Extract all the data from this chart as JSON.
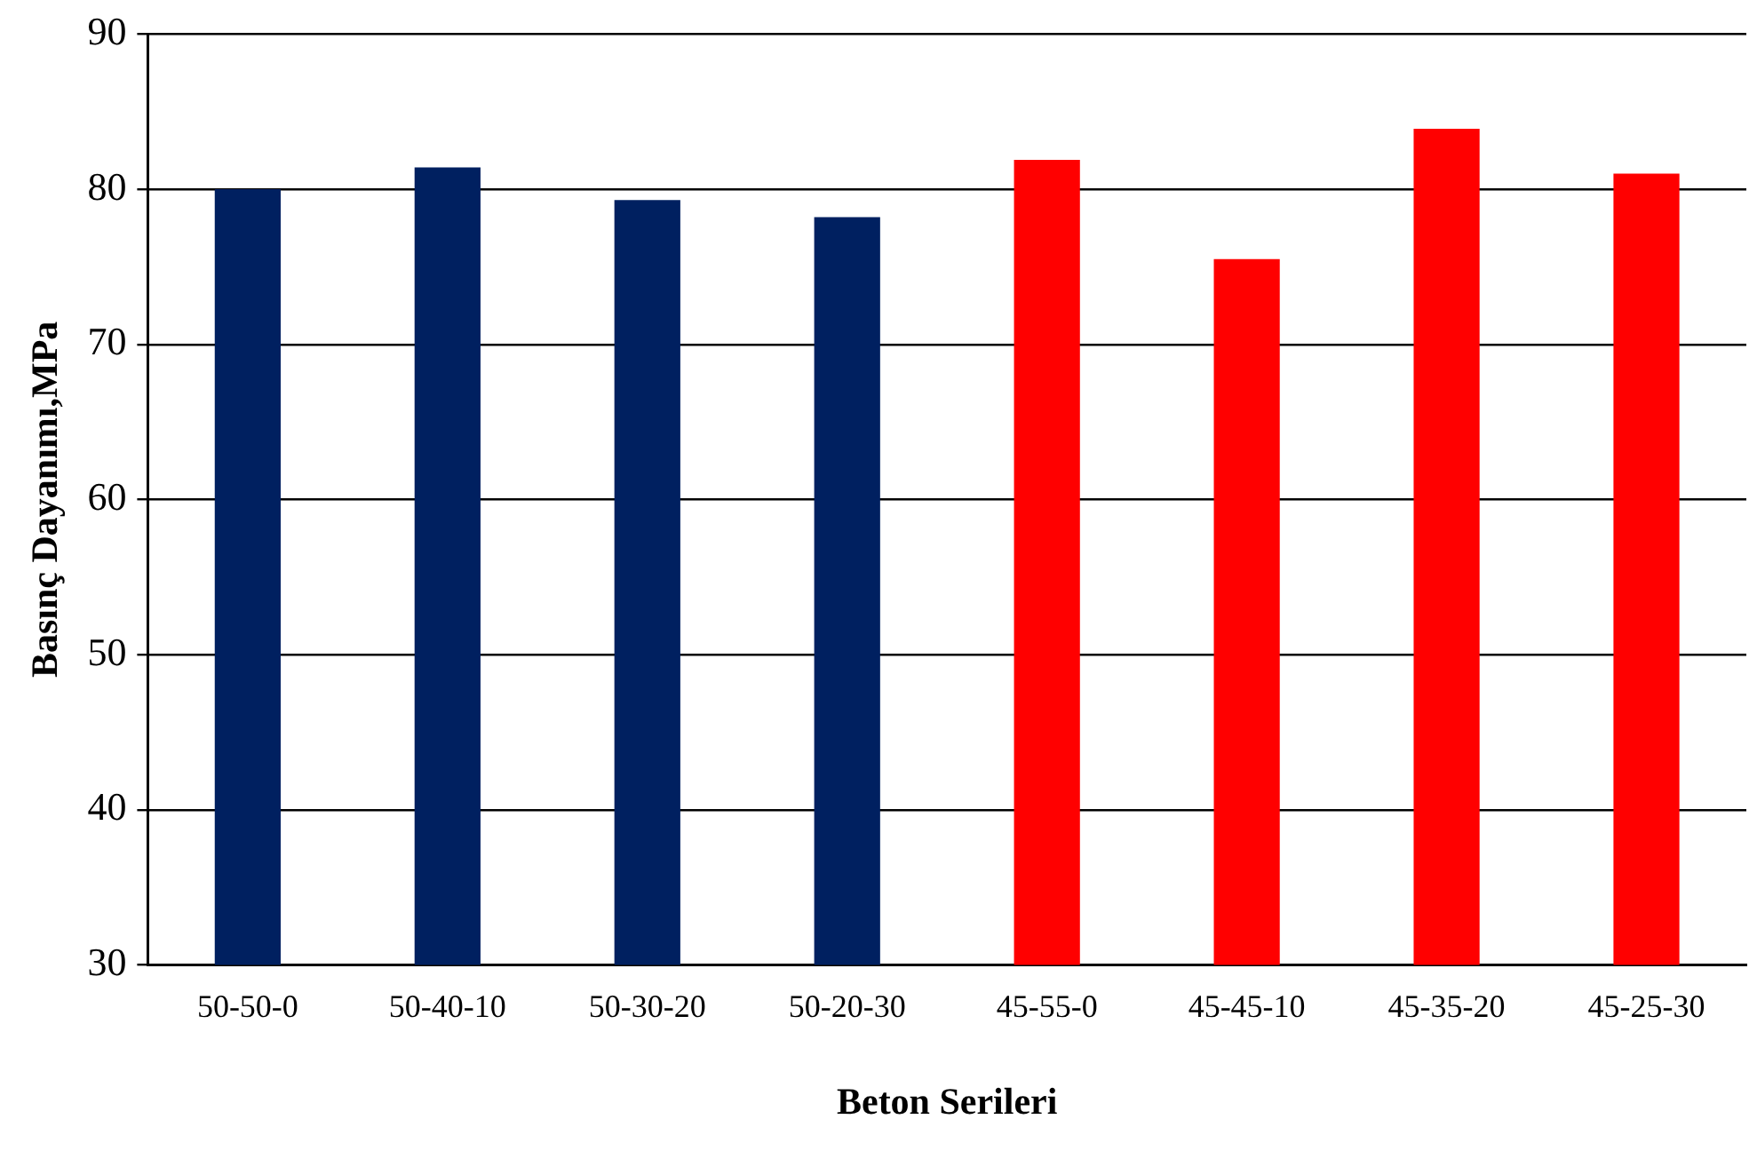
{
  "chart_data": {
    "type": "bar",
    "xlabel": "Beton Serileri",
    "ylabel": "Basınç Dayanımı,MPa",
    "categories": [
      "50-50-0",
      "50-40-10",
      "50-30-20",
      "50-20-30",
      "45-55-0",
      "45-45-10",
      "45-35-20",
      "45-25-30"
    ],
    "values": [
      80.0,
      81.4,
      79.3,
      78.2,
      81.9,
      75.5,
      83.9,
      81.0
    ],
    "colors": [
      "#002060",
      "#002060",
      "#002060",
      "#002060",
      "#ff0000",
      "#ff0000",
      "#ff0000",
      "#ff0000"
    ],
    "ylim": [
      30,
      90
    ],
    "yticks": [
      30,
      40,
      50,
      60,
      70,
      80,
      90
    ],
    "grid": "y",
    "legend": false
  }
}
